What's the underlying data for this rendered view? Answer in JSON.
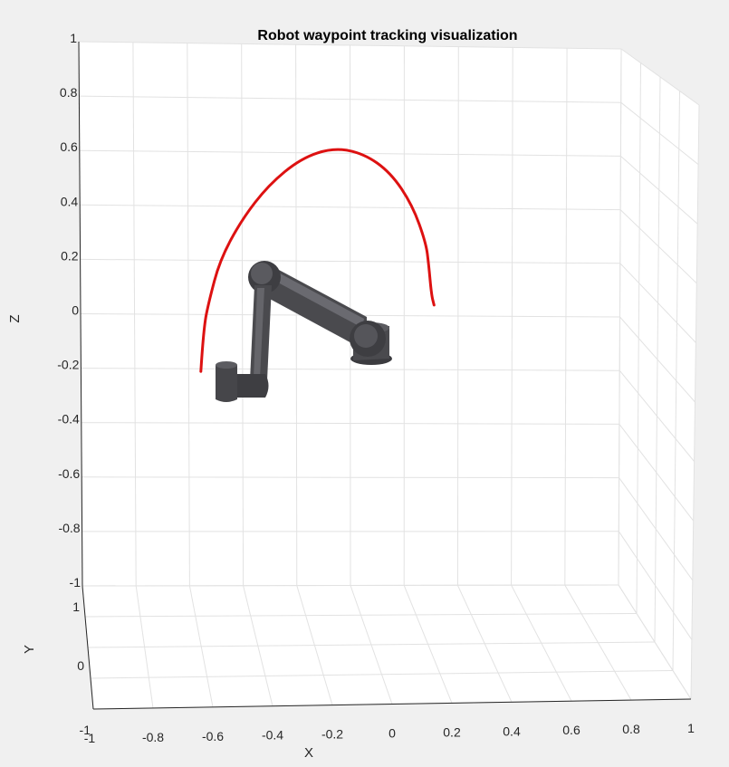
{
  "chart_data": {
    "type": "line",
    "view": "3d",
    "title": "Robot waypoint tracking visualization",
    "xlabel": "X",
    "ylabel": "Y",
    "zlabel": "Z",
    "xlim": [
      -1,
      1
    ],
    "ylim": [
      -1,
      1
    ],
    "zlim": [
      -1,
      1
    ],
    "grid": true,
    "x_ticks": [
      "-1",
      "-0.8",
      "-0.6",
      "-0.4",
      "-0.2",
      "0",
      "0.2",
      "0.4",
      "0.6",
      "0.8",
      "1"
    ],
    "y_ticks": [
      "-1",
      "0",
      "1"
    ],
    "z_ticks": [
      "1",
      "0.8",
      "0.6",
      "0.4",
      "0.2",
      "0",
      "-0.2",
      "-0.4",
      "-0.6",
      "-0.8",
      "-1"
    ],
    "series": [
      {
        "color": "#dd1111",
        "points": [
          {
            "x": -0.55,
            "y": 0,
            "z": -0.21
          },
          {
            "x": -0.54,
            "y": 0,
            "z": -0.05
          },
          {
            "x": -0.52,
            "y": 0,
            "z": 0.05
          },
          {
            "x": -0.48,
            "y": 0,
            "z": 0.2
          },
          {
            "x": -0.4,
            "y": 0,
            "z": 0.35
          },
          {
            "x": -0.3,
            "y": 0,
            "z": 0.48
          },
          {
            "x": -0.18,
            "y": 0,
            "z": 0.58
          },
          {
            "x": -0.06,
            "y": 0,
            "z": 0.62
          },
          {
            "x": 0.05,
            "y": 0,
            "z": 0.6
          },
          {
            "x": 0.15,
            "y": 0,
            "z": 0.53
          },
          {
            "x": 0.23,
            "y": 0,
            "z": 0.41
          },
          {
            "x": 0.28,
            "y": 0,
            "z": 0.27
          },
          {
            "x": 0.29,
            "y": 0,
            "z": 0.19
          },
          {
            "x": 0.3,
            "y": 0,
            "z": 0.08
          },
          {
            "x": 0.31,
            "y": 0,
            "z": 0.04
          }
        ]
      }
    ],
    "robot_color": "#4a4a4e"
  }
}
